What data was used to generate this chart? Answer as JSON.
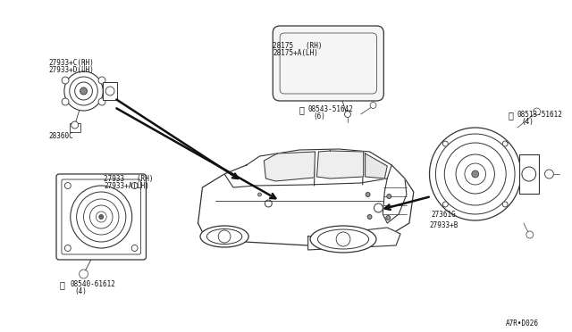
{
  "bg_color": "#ffffff",
  "fig_width": 6.4,
  "fig_height": 3.72,
  "dpi": 100,
  "labels": {
    "top_left_part1": "27933+C(RH)",
    "top_left_part2": "27933+D(LH)",
    "mid_left_part1": "27933   (RH)",
    "mid_left_part2": "27933+A(LH)",
    "bottom_left_screw": "08540-61612",
    "bottom_left_screw_qty": "(4)",
    "left_extra": "28360C",
    "top_mid_part1": "28175   (RH)",
    "top_mid_part2": "28175+A(LH)",
    "mid_screw": "08543-51642",
    "mid_screw_qty": "(6)",
    "top_right_screw": "08513-51612",
    "top_right_screw_qty": "(4)",
    "right_part": "27933+B",
    "right_small": "27361G",
    "watermark": "A7R•D026"
  },
  "lc": "#333333",
  "arrow_color": "#111111",
  "fs": 5.5
}
